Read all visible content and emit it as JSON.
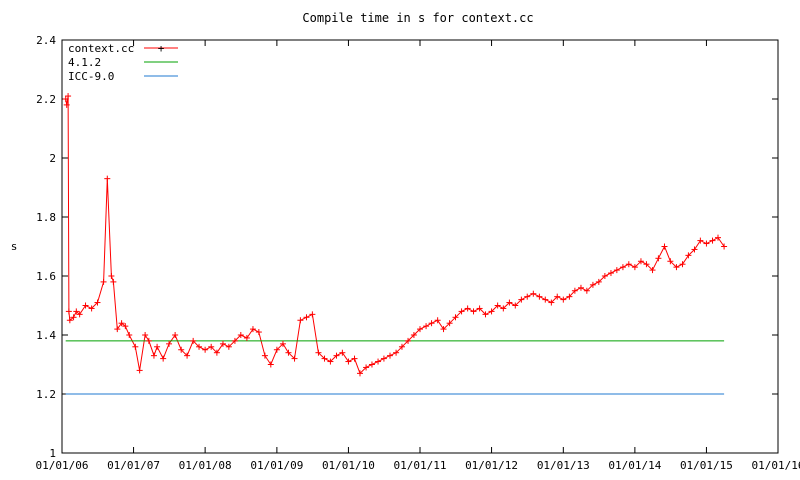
{
  "chart_data": {
    "type": "line",
    "title": "Compile time in s for context.cc",
    "xlabel": "",
    "ylabel": "s",
    "xlim": [
      "2006-01-01",
      "2016-01-01"
    ],
    "ylim": [
      1.0,
      2.4
    ],
    "x_ticks": [
      "01/01/06",
      "01/01/07",
      "01/01/08",
      "01/01/09",
      "01/01/10",
      "01/01/11",
      "01/01/12",
      "01/01/13",
      "01/01/14",
      "01/01/15",
      "01/01/16"
    ],
    "y_ticks": [
      "1",
      "1.2",
      "1.4",
      "1.6",
      "1.8",
      "2",
      "2.2",
      "2.4"
    ],
    "y_tick_values": [
      1.0,
      1.2,
      1.4,
      1.6,
      1.8,
      2.0,
      2.2,
      2.4
    ],
    "grid": false,
    "legend_position": "top-left",
    "series": [
      {
        "name": "context.cc",
        "color": "#ff0000",
        "marker": "plus",
        "x": [
          "2006-01-20",
          "2006-01-25",
          "2006-02-01",
          "2006-02-05",
          "2006-02-10",
          "2006-03-01",
          "2006-03-15",
          "2006-04-01",
          "2006-05-01",
          "2006-06-01",
          "2006-07-01",
          "2006-08-01",
          "2006-08-20",
          "2006-09-10",
          "2006-09-20",
          "2006-10-10",
          "2006-11-01",
          "2006-11-20",
          "2006-12-10",
          "2007-01-10",
          "2007-02-01",
          "2007-03-01",
          "2007-03-20",
          "2007-04-15",
          "2007-05-01",
          "2007-06-01",
          "2007-07-01",
          "2007-08-01",
          "2007-09-01",
          "2007-10-01",
          "2007-11-01",
          "2007-12-01",
          "2008-01-01",
          "2008-02-01",
          "2008-03-01",
          "2008-04-01",
          "2008-05-01",
          "2008-06-01",
          "2008-07-01",
          "2008-08-01",
          "2008-09-01",
          "2008-10-01",
          "2008-11-01",
          "2008-12-01",
          "2009-01-01",
          "2009-02-01",
          "2009-03-01",
          "2009-04-01",
          "2009-05-01",
          "2009-06-01",
          "2009-07-01",
          "2009-08-01",
          "2009-09-01",
          "2009-10-01",
          "2009-11-01",
          "2009-12-01",
          "2010-01-01",
          "2010-02-01",
          "2010-03-01",
          "2010-04-01",
          "2010-05-01",
          "2010-06-01",
          "2010-07-01",
          "2010-08-01",
          "2010-09-01",
          "2010-10-01",
          "2010-11-01",
          "2010-12-01",
          "2011-01-01",
          "2011-02-01",
          "2011-03-01",
          "2011-04-01",
          "2011-05-01",
          "2011-06-01",
          "2011-07-01",
          "2011-08-01",
          "2011-09-01",
          "2011-10-01",
          "2011-11-01",
          "2011-12-01",
          "2012-01-01",
          "2012-02-01",
          "2012-03-01",
          "2012-04-01",
          "2012-05-01",
          "2012-06-01",
          "2012-07-01",
          "2012-08-01",
          "2012-09-01",
          "2012-10-01",
          "2012-11-01",
          "2012-12-01",
          "2013-01-01",
          "2013-02-01",
          "2013-03-01",
          "2013-04-01",
          "2013-05-01",
          "2013-06-01",
          "2013-07-01",
          "2013-08-01",
          "2013-09-01",
          "2013-10-01",
          "2013-11-01",
          "2013-12-01",
          "2014-01-01",
          "2014-02-01",
          "2014-03-01",
          "2014-04-01",
          "2014-05-01",
          "2014-06-01",
          "2014-07-01",
          "2014-08-01",
          "2014-09-01",
          "2014-10-01",
          "2014-11-01",
          "2014-12-01",
          "2015-01-01",
          "2015-02-01",
          "2015-03-01",
          "2015-04-01"
        ],
        "y": [
          2.2,
          2.18,
          2.21,
          1.48,
          1.45,
          1.46,
          1.48,
          1.47,
          1.5,
          1.49,
          1.51,
          1.58,
          1.93,
          1.6,
          1.58,
          1.42,
          1.44,
          1.43,
          1.4,
          1.36,
          1.28,
          1.4,
          1.38,
          1.33,
          1.36,
          1.32,
          1.37,
          1.4,
          1.35,
          1.33,
          1.38,
          1.36,
          1.35,
          1.36,
          1.34,
          1.37,
          1.36,
          1.38,
          1.4,
          1.39,
          1.42,
          1.41,
          1.33,
          1.3,
          1.35,
          1.37,
          1.34,
          1.32,
          1.45,
          1.46,
          1.47,
          1.34,
          1.32,
          1.31,
          1.33,
          1.34,
          1.31,
          1.32,
          1.27,
          1.29,
          1.3,
          1.31,
          1.32,
          1.33,
          1.34,
          1.36,
          1.38,
          1.4,
          1.42,
          1.43,
          1.44,
          1.45,
          1.42,
          1.44,
          1.46,
          1.48,
          1.49,
          1.48,
          1.49,
          1.47,
          1.48,
          1.5,
          1.49,
          1.51,
          1.5,
          1.52,
          1.53,
          1.54,
          1.53,
          1.52,
          1.51,
          1.53,
          1.52,
          1.53,
          1.55,
          1.56,
          1.55,
          1.57,
          1.58,
          1.6,
          1.61,
          1.62,
          1.63,
          1.64,
          1.63,
          1.65,
          1.64,
          1.62,
          1.66,
          1.7,
          1.65,
          1.63,
          1.64,
          1.67,
          1.69,
          1.72,
          1.71,
          1.72,
          1.73,
          1.7
        ]
      },
      {
        "name": "4.1.2",
        "color": "#00a000",
        "x": [
          "2006-01-20",
          "2015-04-01"
        ],
        "y": [
          1.38,
          1.38
        ]
      },
      {
        "name": "ICC-9.0",
        "color": "#1f78d0",
        "x": [
          "2006-01-20",
          "2015-04-01"
        ],
        "y": [
          1.2,
          1.2
        ]
      }
    ]
  }
}
